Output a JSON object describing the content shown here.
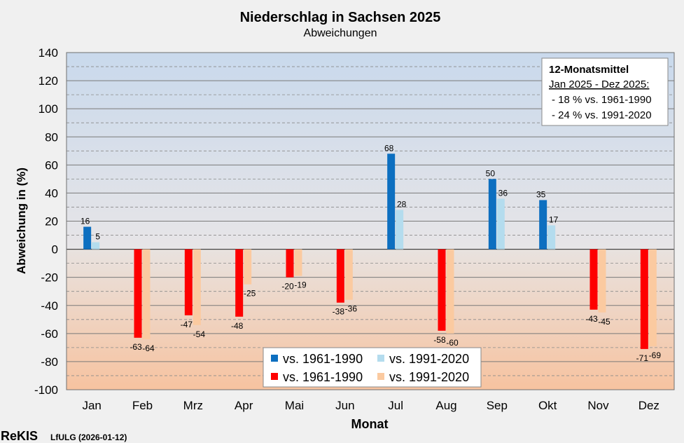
{
  "colors": {
    "pos_old": "#0d6fc0",
    "pos_new": "#b4dcee",
    "neg_old": "#fe0000",
    "neg_new": "#fbcaa0",
    "bg_top": "#c9d9ec",
    "bg_bottom": "#f7c3a0"
  },
  "footer": {
    "brand": "ReKIS",
    "org": "LfULG (2026-01-12)"
  },
  "chart_data": {
    "type": "bar",
    "title": "Niederschlag  in Sachsen 2025",
    "subtitle": "Abweichungen",
    "xlabel": "Monat",
    "ylabel": "Abweichung in (%)",
    "ylim": [
      -100,
      140
    ],
    "ytick_step": 20,
    "yticks": [
      "-100",
      "-80",
      "-60",
      "-40",
      "-20",
      "0",
      "20",
      "40",
      "60",
      "80",
      "100",
      "120",
      "140"
    ],
    "categories": [
      "Jan",
      "Feb",
      "Mrz",
      "Apr",
      "Mai",
      "Jun",
      "Jul",
      "Aug",
      "Sep",
      "Okt",
      "Nov",
      "Dez"
    ],
    "series": [
      {
        "name": "vs. 1961-1990",
        "values": [
          16,
          -63,
          -47,
          -48,
          -20,
          -38,
          68,
          -58,
          50,
          35,
          -43,
          -71
        ]
      },
      {
        "name": "vs. 1991-2020",
        "values": [
          5,
          -64,
          -54,
          -25,
          -19,
          -36,
          28,
          -60,
          36,
          17,
          -45,
          -69
        ]
      }
    ],
    "legend": {
      "position": "bottom-center",
      "entries": [
        {
          "label": "vs. 1961-1990",
          "color_key": "pos_old"
        },
        {
          "label": "vs. 1991-2020",
          "color_key": "pos_new"
        },
        {
          "label": "vs. 1961-1990",
          "color_key": "neg_old"
        },
        {
          "label": "vs. 1991-2020",
          "color_key": "neg_new"
        }
      ]
    },
    "annotation": {
      "position": "top-right",
      "title": "12-Monatsmittel",
      "period": "Jan 2025 - Dez 2025:",
      "lines": [
        "- 18  % vs. 1961-1990",
        "- 24  % vs. 1991-2020"
      ]
    }
  }
}
